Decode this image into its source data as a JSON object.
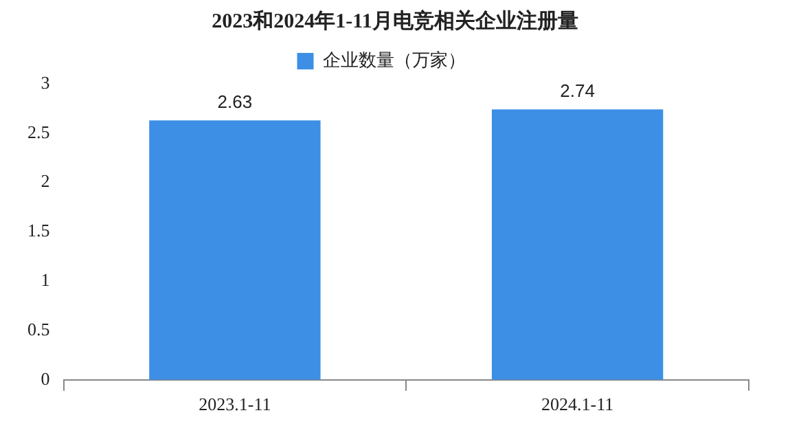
{
  "chart_data": {
    "type": "bar",
    "title": "2023和2024年1-11月电竞相关企业注册量",
    "categories": [
      "2023.1-11",
      "2024.1-11"
    ],
    "series": [
      {
        "name": "企业数量（万家）",
        "color": "#3d8fe6",
        "values": [
          2.63,
          2.74
        ]
      }
    ],
    "ylim": [
      0,
      3
    ],
    "yticks": [
      0,
      0.5,
      1,
      1.5,
      2,
      2.5,
      3
    ],
    "grid": false,
    "legend": "top",
    "data_labels": true
  }
}
